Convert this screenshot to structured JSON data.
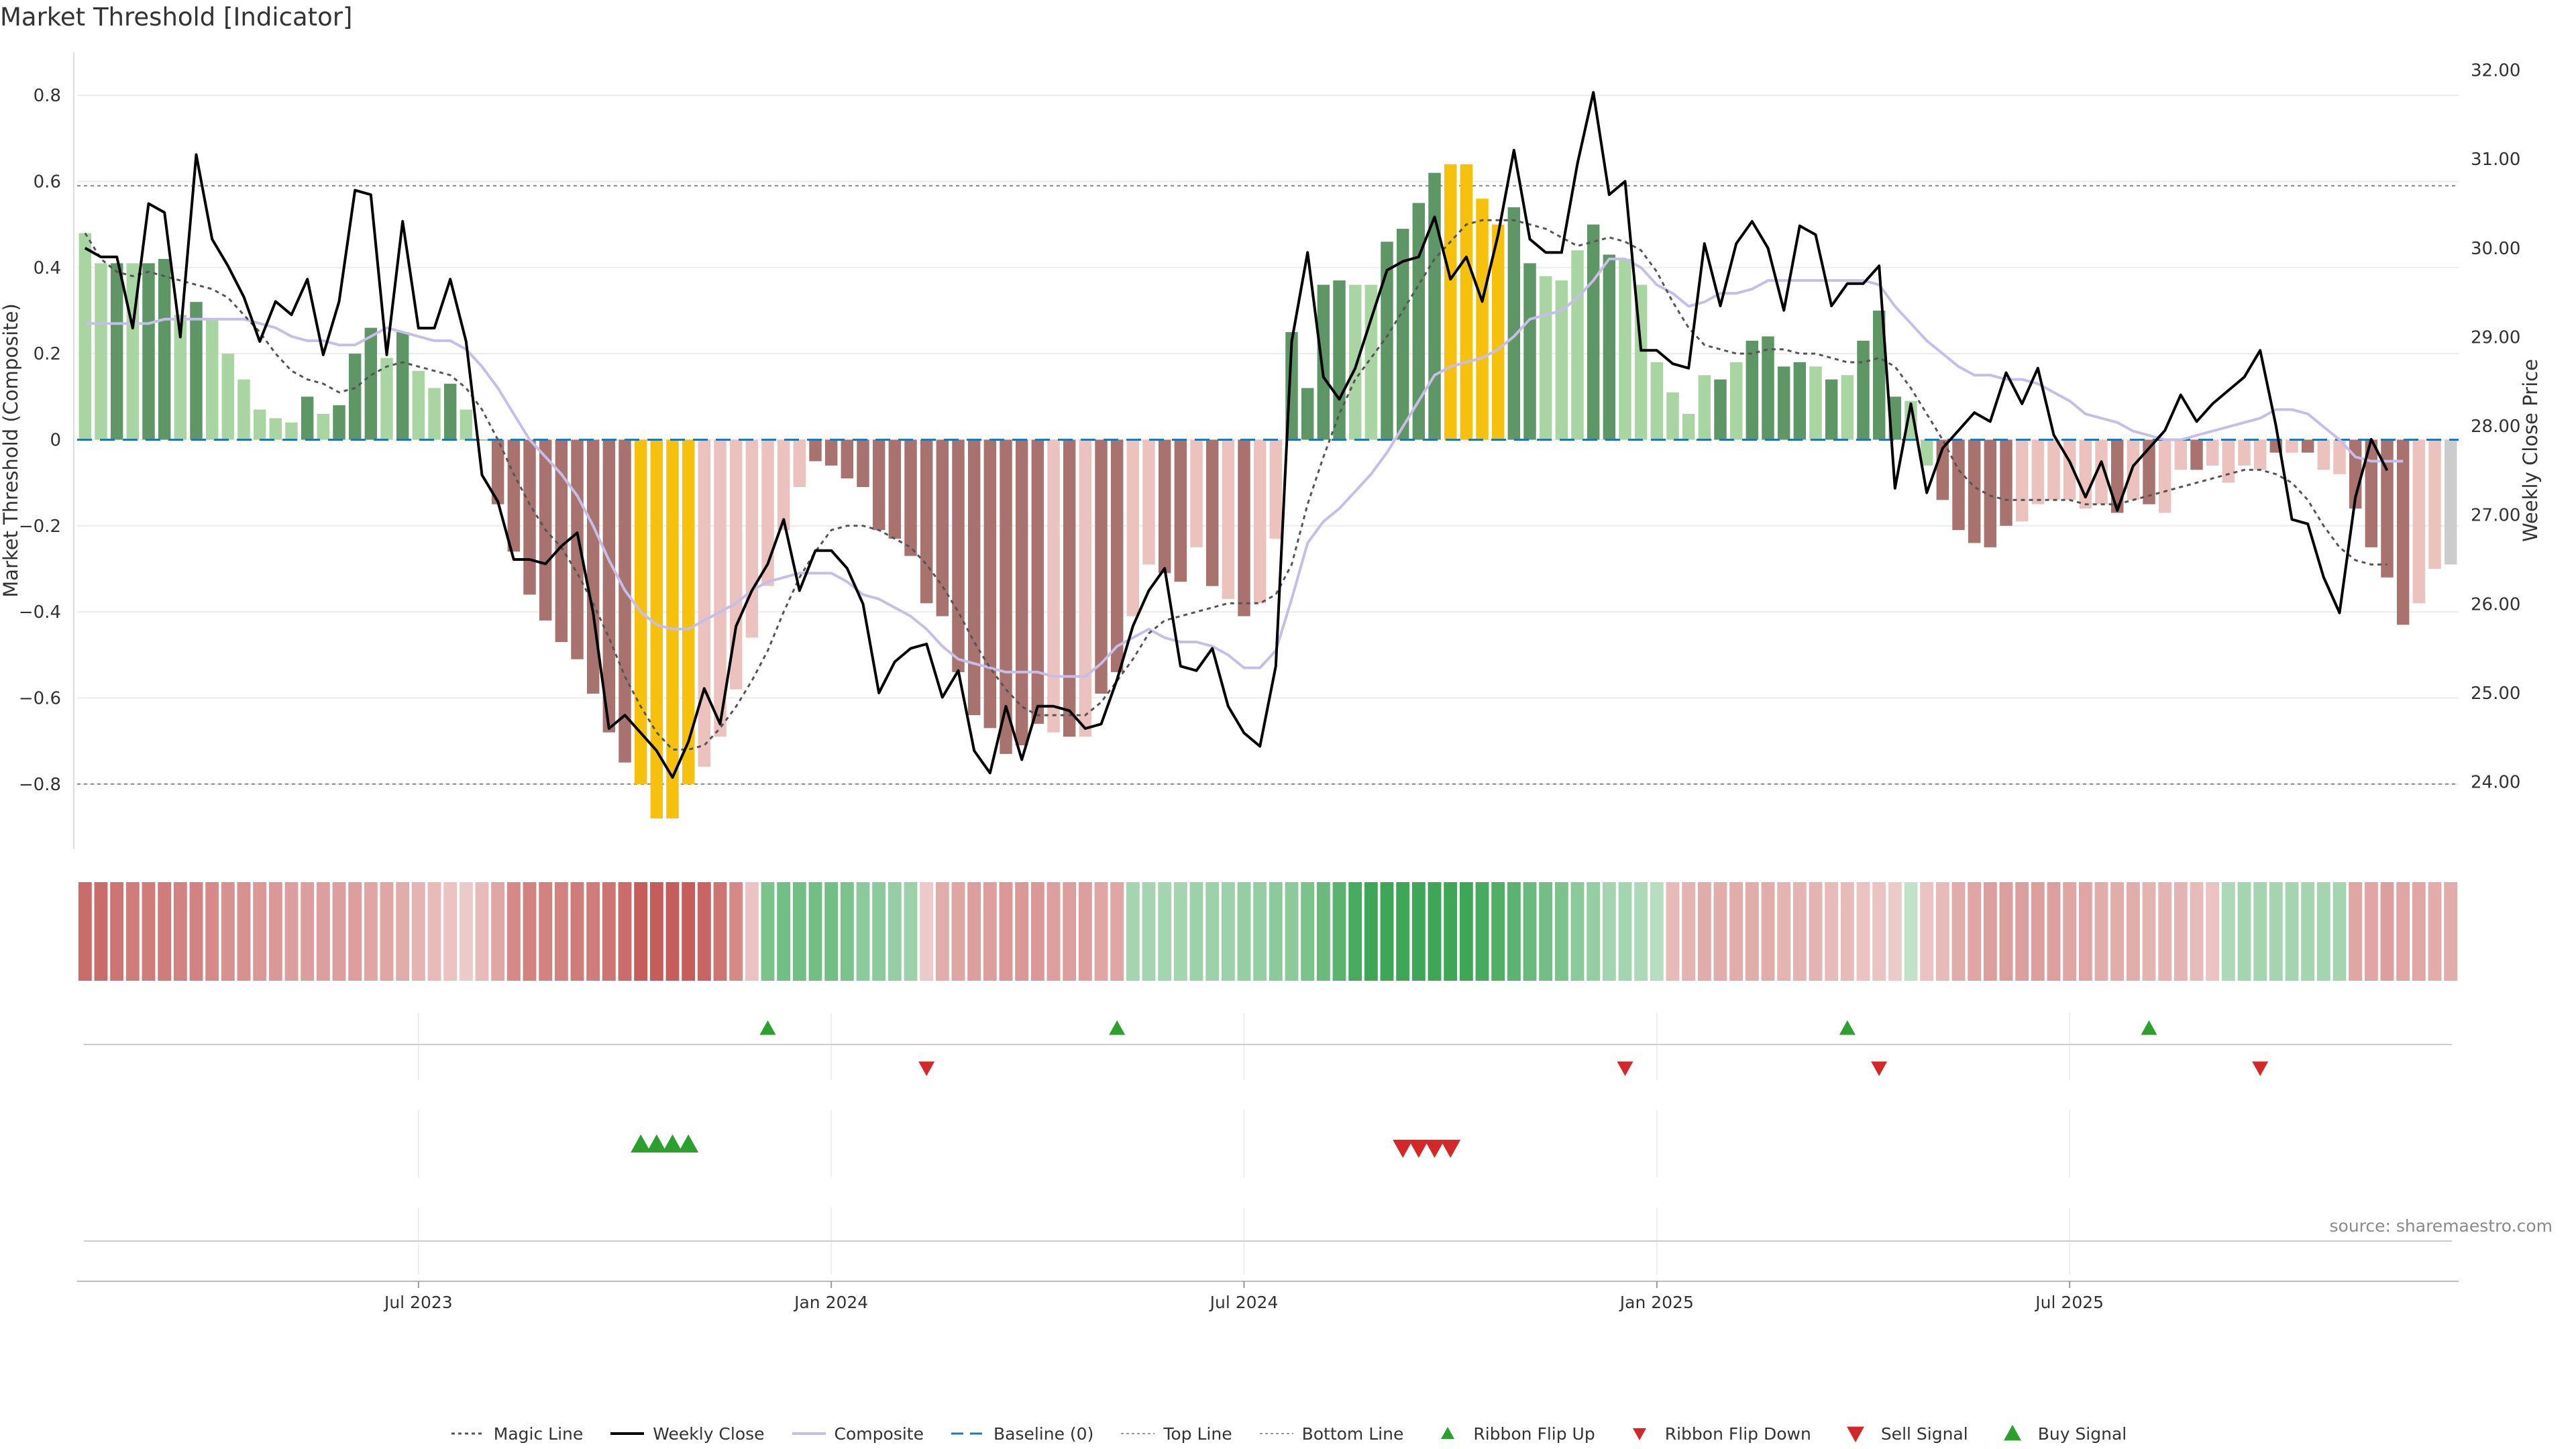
{
  "title": "Market Threshold [Indicator]",
  "source": "source: sharemaestro.com",
  "colors": {
    "bar_green_dark": "#5f9665",
    "bar_green_light": "#a9d5a3",
    "bar_red_dark": "#a8736f",
    "bar_red_light": "#ecc2bf",
    "bar_extreme": "#f5c10c",
    "close_line": "#000000",
    "composite_line": "#c6bde8",
    "magic_line": "#555555",
    "baseline": "#1f77b4",
    "up_marker": "#2ca02c",
    "down_marker": "#d62728",
    "ribbon_green": "#2e9e48",
    "ribbon_red": "#c0504d"
  },
  "chart_data": {
    "type": "bar+line",
    "y_left_label": "Market Threshold (Composite)",
    "y_right_label": "Weekly Close Price",
    "y_left_ticks": [
      "0.8",
      "0.6",
      "0.4",
      "0.2",
      "0",
      "−0.2",
      "−0.4",
      "−0.6",
      "−0.8"
    ],
    "y_left_ticks_values": [
      0.8,
      0.6,
      0.4,
      0.2,
      0,
      -0.2,
      -0.4,
      -0.6,
      -0.8
    ],
    "y_left_range": [
      -0.95,
      0.9
    ],
    "y_right_ticks": [
      "32.00",
      "31.00",
      "30.00",
      "29.00",
      "28.00",
      "27.00",
      "26.00",
      "25.00",
      "24.00"
    ],
    "y_right_ticks_values": [
      32,
      31,
      30,
      29,
      28,
      27,
      26,
      25,
      24
    ],
    "y_right_range": [
      23.25,
      32.2
    ],
    "x_tick_labels": [
      "Jul 2023",
      "Jan 2024",
      "Jul 2024",
      "Jan 2025",
      "Jul 2025"
    ],
    "x_tick_index": [
      21,
      47,
      73,
      99,
      125
    ],
    "top_line": 0.59,
    "bottom_line": -0.8,
    "composite": [
      0.48,
      0.41,
      0.41,
      0.41,
      0.41,
      0.42,
      0.29,
      0.32,
      0.28,
      0.2,
      0.14,
      0.07,
      0.05,
      0.04,
      0.1,
      0.06,
      0.08,
      0.2,
      0.26,
      0.19,
      0.25,
      0.16,
      0.12,
      0.13,
      0.07,
      0.0,
      -0.15,
      -0.26,
      -0.36,
      -0.42,
      -0.47,
      -0.51,
      -0.59,
      -0.68,
      -0.75,
      -0.8,
      -0.88,
      -0.88,
      -0.8,
      -0.76,
      -0.69,
      -0.58,
      -0.46,
      -0.34,
      -0.21,
      -0.11,
      -0.05,
      -0.06,
      -0.09,
      -0.11,
      -0.21,
      -0.23,
      -0.27,
      -0.38,
      -0.41,
      -0.54,
      -0.64,
      -0.67,
      -0.73,
      -0.71,
      -0.66,
      -0.68,
      -0.69,
      -0.69,
      -0.59,
      -0.54,
      -0.41,
      -0.29,
      -0.31,
      -0.33,
      -0.25,
      -0.34,
      -0.37,
      -0.41,
      -0.38,
      -0.23,
      0.25,
      0.12,
      0.36,
      0.37,
      0.36,
      0.36,
      0.46,
      0.49,
      0.55,
      0.62,
      0.64,
      0.64,
      0.56,
      0.5,
      0.54,
      0.41,
      0.38,
      0.37,
      0.44,
      0.5,
      0.43,
      0.42,
      0.36,
      0.18,
      0.11,
      0.06,
      0.15,
      0.14,
      0.18,
      0.23,
      0.24,
      0.17,
      0.18,
      0.17,
      0.14,
      0.15,
      0.23,
      0.3,
      0.1,
      0.09,
      -0.06,
      -0.14,
      -0.21,
      -0.24,
      -0.25,
      -0.2,
      -0.19,
      -0.15,
      -0.14,
      -0.14,
      -0.16,
      -0.15,
      -0.17,
      -0.14,
      -0.15,
      -0.17,
      -0.07,
      -0.07,
      -0.06,
      -0.1,
      -0.06,
      -0.07,
      -0.03,
      -0.03,
      -0.03,
      -0.07,
      -0.08,
      -0.16,
      -0.25,
      -0.32,
      -0.43,
      -0.38,
      -0.3,
      -0.29
    ],
    "bar_class": [
      "gl",
      "gl",
      "gd",
      "gl",
      "gd",
      "gd",
      "gl",
      "gd",
      "gl",
      "gl",
      "gl",
      "gl",
      "gl",
      "gl",
      "gd",
      "gl",
      "gd",
      "gd",
      "gd",
      "gl",
      "gd",
      "gl",
      "gl",
      "gd",
      "gl",
      "gd",
      "rd",
      "rd",
      "rd",
      "rd",
      "rd",
      "rd",
      "rd",
      "rd",
      "rd",
      "y",
      "y",
      "y",
      "y",
      "rl",
      "rl",
      "rl",
      "rl",
      "rl",
      "rl",
      "rl",
      "rd",
      "rd",
      "rd",
      "rd",
      "rd",
      "rd",
      "rd",
      "rd",
      "rd",
      "rd",
      "rd",
      "rd",
      "rd",
      "rd",
      "rd",
      "rl",
      "rd",
      "rl",
      "rd",
      "rd",
      "rl",
      "rl",
      "rd",
      "rd",
      "rl",
      "rd",
      "rl",
      "rd",
      "rl",
      "rl",
      "gd",
      "gd",
      "gd",
      "gd",
      "gl",
      "gl",
      "gd",
      "gd",
      "gd",
      "gd",
      "y",
      "y",
      "y",
      "y",
      "gd",
      "gd",
      "gl",
      "gl",
      "gl",
      "gd",
      "gd",
      "gl",
      "gl",
      "gl",
      "gl",
      "gl",
      "gl",
      "gd",
      "gl",
      "gd",
      "gd",
      "gd",
      "gd",
      "gl",
      "gd",
      "gl",
      "gd",
      "gd",
      "gd",
      "gl",
      "gl",
      "rd",
      "rd",
      "rd",
      "rd",
      "rd",
      "rl",
      "rl",
      "rl",
      "rl",
      "rl",
      "rl",
      "rd",
      "rl",
      "rd",
      "rl",
      "rl",
      "rd",
      "rl",
      "rl",
      "rl",
      "rl",
      "rd",
      "rl",
      "rd",
      "rl",
      "rl",
      "rd",
      "rd",
      "rd",
      "rd",
      "rl",
      "rl"
    ],
    "weekly_close": [
      30.0,
      29.9,
      29.9,
      29.1,
      30.5,
      30.4,
      29.0,
      31.05,
      30.1,
      29.8,
      29.45,
      28.95,
      29.4,
      29.25,
      29.65,
      28.8,
      29.4,
      30.65,
      30.6,
      28.8,
      30.3,
      29.1,
      29.1,
      29.65,
      28.95,
      27.45,
      27.15,
      26.5,
      26.5,
      26.45,
      26.65,
      26.8,
      25.9,
      24.6,
      24.75,
      24.55,
      24.35,
      24.05,
      24.45,
      25.05,
      24.65,
      25.75,
      26.15,
      26.45,
      26.95,
      26.15,
      26.6,
      26.6,
      26.4,
      26.0,
      25.0,
      25.35,
      25.5,
      25.55,
      24.95,
      25.25,
      24.35,
      24.1,
      24.85,
      24.25,
      24.85,
      24.85,
      24.8,
      24.6,
      24.65,
      25.15,
      25.75,
      26.15,
      26.4,
      25.3,
      25.25,
      25.5,
      24.85,
      24.55,
      24.4,
      25.3,
      28.95,
      29.95,
      28.55,
      28.3,
      28.65,
      29.2,
      29.75,
      29.85,
      29.9,
      30.35,
      29.65,
      29.9,
      29.4,
      30.15,
      31.1,
      30.1,
      29.95,
      29.95,
      30.95,
      31.75,
      30.6,
      30.75,
      28.85,
      28.85,
      28.7,
      28.65,
      30.05,
      29.35,
      30.05,
      30.3,
      30.0,
      29.3,
      30.25,
      30.15,
      29.35,
      29.6,
      29.6,
      29.8,
      27.3,
      28.25,
      27.25,
      27.75,
      27.95,
      28.15,
      28.05,
      28.6,
      28.25,
      28.65,
      27.9,
      27.6,
      27.2,
      27.6,
      27.05,
      27.55,
      27.75,
      27.95,
      28.35,
      28.05,
      28.25,
      28.4,
      28.55,
      28.85,
      28.0,
      26.95,
      26.9,
      26.3,
      25.9,
      27.2,
      27.85,
      27.5
    ],
    "composite_smooth": [
      0.27,
      0.27,
      0.27,
      0.27,
      0.27,
      0.28,
      0.28,
      0.28,
      0.28,
      0.28,
      0.28,
      0.27,
      0.26,
      0.24,
      0.23,
      0.23,
      0.22,
      0.22,
      0.24,
      0.26,
      0.25,
      0.24,
      0.23,
      0.23,
      0.21,
      0.17,
      0.12,
      0.06,
      0.0,
      -0.04,
      -0.08,
      -0.13,
      -0.2,
      -0.28,
      -0.35,
      -0.4,
      -0.43,
      -0.44,
      -0.44,
      -0.42,
      -0.4,
      -0.38,
      -0.35,
      -0.33,
      -0.32,
      -0.31,
      -0.31,
      -0.31,
      -0.33,
      -0.36,
      -0.37,
      -0.39,
      -0.41,
      -0.44,
      -0.48,
      -0.51,
      -0.52,
      -0.53,
      -0.54,
      -0.54,
      -0.54,
      -0.55,
      -0.55,
      -0.55,
      -0.52,
      -0.48,
      -0.46,
      -0.44,
      -0.46,
      -0.47,
      -0.47,
      -0.48,
      -0.5,
      -0.53,
      -0.53,
      -0.49,
      -0.37,
      -0.24,
      -0.19,
      -0.16,
      -0.12,
      -0.08,
      -0.03,
      0.03,
      0.09,
      0.15,
      0.17,
      0.18,
      0.19,
      0.21,
      0.24,
      0.28,
      0.29,
      0.3,
      0.33,
      0.37,
      0.42,
      0.42,
      0.4,
      0.36,
      0.34,
      0.31,
      0.32,
      0.34,
      0.34,
      0.35,
      0.37,
      0.37,
      0.37,
      0.37,
      0.37,
      0.37,
      0.37,
      0.36,
      0.31,
      0.27,
      0.23,
      0.2,
      0.17,
      0.15,
      0.15,
      0.14,
      0.14,
      0.13,
      0.11,
      0.09,
      0.06,
      0.05,
      0.04,
      0.02,
      0.01,
      0.0,
      0.0,
      0.01,
      0.02,
      0.03,
      0.04,
      0.05,
      0.07,
      0.07,
      0.06,
      0.03,
      0.0,
      -0.04,
      -0.05,
      -0.05,
      -0.05
    ],
    "magic_line": [
      0.48,
      0.42,
      0.39,
      0.38,
      0.39,
      0.38,
      0.37,
      0.36,
      0.35,
      0.33,
      0.29,
      0.25,
      0.2,
      0.16,
      0.14,
      0.13,
      0.11,
      0.12,
      0.15,
      0.17,
      0.18,
      0.17,
      0.16,
      0.15,
      0.12,
      0.07,
      0.0,
      -0.08,
      -0.15,
      -0.21,
      -0.25,
      -0.31,
      -0.38,
      -0.46,
      -0.55,
      -0.62,
      -0.68,
      -0.72,
      -0.72,
      -0.71,
      -0.67,
      -0.62,
      -0.56,
      -0.49,
      -0.4,
      -0.32,
      -0.26,
      -0.21,
      -0.2,
      -0.2,
      -0.21,
      -0.23,
      -0.25,
      -0.29,
      -0.34,
      -0.4,
      -0.47,
      -0.53,
      -0.58,
      -0.62,
      -0.64,
      -0.64,
      -0.64,
      -0.64,
      -0.61,
      -0.56,
      -0.51,
      -0.45,
      -0.42,
      -0.41,
      -0.4,
      -0.39,
      -0.38,
      -0.38,
      -0.38,
      -0.36,
      -0.29,
      -0.15,
      -0.04,
      0.06,
      0.14,
      0.19,
      0.24,
      0.3,
      0.36,
      0.42,
      0.46,
      0.5,
      0.51,
      0.51,
      0.51,
      0.5,
      0.49,
      0.47,
      0.45,
      0.46,
      0.47,
      0.46,
      0.44,
      0.39,
      0.32,
      0.26,
      0.22,
      0.21,
      0.2,
      0.2,
      0.21,
      0.21,
      0.2,
      0.2,
      0.19,
      0.18,
      0.18,
      0.19,
      0.17,
      0.12,
      0.06,
      0.0,
      -0.07,
      -0.11,
      -0.13,
      -0.14,
      -0.14,
      -0.14,
      -0.14,
      -0.14,
      -0.15,
      -0.15,
      -0.15,
      -0.14,
      -0.13,
      -0.12,
      -0.11,
      -0.1,
      -0.09,
      -0.08,
      -0.07,
      -0.07,
      -0.08,
      -0.1,
      -0.14,
      -0.2,
      -0.25,
      -0.28,
      -0.29,
      -0.29
    ],
    "ribbon": [
      -0.8,
      -0.8,
      -0.75,
      -0.7,
      -0.7,
      -0.7,
      -0.65,
      -0.65,
      -0.6,
      -0.55,
      -0.55,
      -0.5,
      -0.5,
      -0.45,
      -0.45,
      -0.45,
      -0.45,
      -0.45,
      -0.4,
      -0.4,
      -0.35,
      -0.3,
      -0.25,
      -0.2,
      -0.15,
      -0.25,
      -0.4,
      -0.6,
      -0.65,
      -0.65,
      -0.65,
      -0.7,
      -0.7,
      -0.75,
      -0.8,
      -0.9,
      -0.9,
      -0.9,
      -0.9,
      -0.85,
      -0.75,
      -0.6,
      -0.2,
      0.55,
      0.6,
      0.6,
      0.6,
      0.6,
      0.55,
      0.45,
      0.45,
      0.4,
      0.35,
      -0.15,
      -0.35,
      -0.4,
      -0.45,
      -0.45,
      -0.5,
      -0.5,
      -0.5,
      -0.45,
      -0.45,
      -0.45,
      -0.4,
      -0.4,
      0.3,
      0.3,
      0.3,
      0.3,
      0.35,
      0.35,
      0.35,
      0.4,
      0.4,
      0.45,
      0.45,
      0.55,
      0.65,
      0.75,
      0.85,
      0.9,
      0.9,
      0.9,
      0.9,
      0.9,
      0.9,
      0.9,
      0.85,
      0.8,
      0.75,
      0.65,
      0.6,
      0.55,
      0.45,
      0.4,
      0.3,
      0.3,
      0.25,
      0.2,
      -0.25,
      -0.3,
      -0.35,
      -0.35,
      -0.35,
      -0.35,
      -0.35,
      -0.3,
      -0.3,
      -0.3,
      -0.25,
      -0.25,
      -0.2,
      -0.2,
      -0.15,
      0.15,
      -0.2,
      -0.25,
      -0.35,
      -0.4,
      -0.45,
      -0.45,
      -0.45,
      -0.45,
      -0.45,
      -0.4,
      -0.4,
      -0.35,
      -0.35,
      -0.35,
      -0.3,
      -0.3,
      -0.3,
      -0.25,
      -0.2,
      0.25,
      0.3,
      0.3,
      0.3,
      0.3,
      0.3,
      0.3,
      0.3,
      -0.4,
      -0.4,
      -0.45,
      -0.4,
      -0.4,
      -0.35,
      -0.35
    ],
    "ribbon_flip_up": [
      43,
      65,
      111,
      130
    ],
    "ribbon_flip_down": [
      53,
      97,
      113,
      137
    ],
    "buy_signal": [
      35,
      36,
      37,
      38
    ],
    "sell_signal": [
      83,
      84,
      85,
      86
    ],
    "legend": [
      {
        "label": "Magic Line",
        "type": "dotted-line"
      },
      {
        "label": "Weekly Close",
        "type": "solid-line"
      },
      {
        "label": "Composite",
        "type": "composite-line"
      },
      {
        "label": "Baseline (0)",
        "type": "dashed-line"
      },
      {
        "label": "Top Line",
        "type": "light-dotted"
      },
      {
        "label": "Bottom Line",
        "type": "light-dotted"
      },
      {
        "label": "Ribbon Flip Up",
        "type": "tri-up-small"
      },
      {
        "label": "Ribbon Flip Down",
        "type": "tri-down-small"
      },
      {
        "label": "Sell Signal",
        "type": "tri-down"
      },
      {
        "label": "Buy Signal",
        "type": "tri-up"
      }
    ]
  }
}
